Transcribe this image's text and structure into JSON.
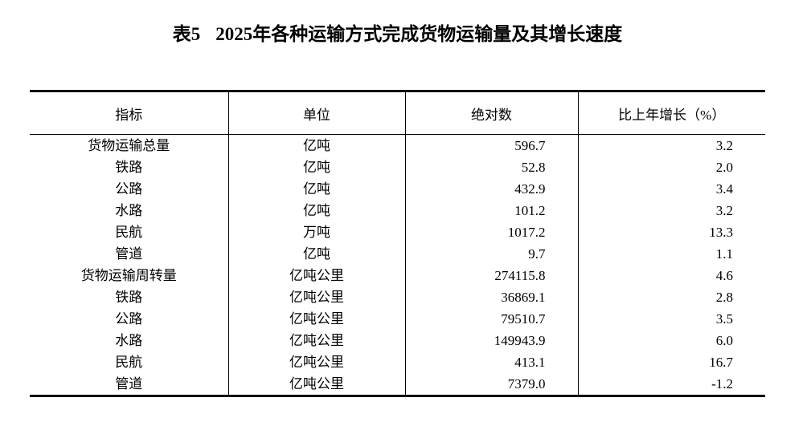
{
  "title": {
    "prefix": "表5",
    "text": "2025年各种运输方式完成货物运输量及其增长速度"
  },
  "table": {
    "columns": [
      "指标",
      "单位",
      "绝对数",
      "比上年增长（%）"
    ],
    "rows": [
      {
        "indicator": "货物运输总量",
        "unit": "亿吨",
        "value": "596.7",
        "growth": "3.2"
      },
      {
        "indicator": "铁路",
        "unit": "亿吨",
        "value": "52.8",
        "growth": "2.0"
      },
      {
        "indicator": "公路",
        "unit": "亿吨",
        "value": "432.9",
        "growth": "3.4"
      },
      {
        "indicator": "水路",
        "unit": "亿吨",
        "value": "101.2",
        "growth": "3.2"
      },
      {
        "indicator": "民航",
        "unit": "万吨",
        "value": "1017.2",
        "growth": "13.3"
      },
      {
        "indicator": "管道",
        "unit": "亿吨",
        "value": "9.7",
        "growth": "1.1"
      },
      {
        "indicator": "货物运输周转量",
        "unit": "亿吨公里",
        "value": "274115.8",
        "growth": "4.6"
      },
      {
        "indicator": "铁路",
        "unit": "亿吨公里",
        "value": "36869.1",
        "growth": "2.8"
      },
      {
        "indicator": "公路",
        "unit": "亿吨公里",
        "value": "79510.7",
        "growth": "3.5"
      },
      {
        "indicator": "水路",
        "unit": "亿吨公里",
        "value": "149943.9",
        "growth": "6.0"
      },
      {
        "indicator": "民航",
        "unit": "亿吨公里",
        "value": "413.1",
        "growth": "16.7"
      },
      {
        "indicator": "管道",
        "unit": "亿吨公里",
        "value": "7379.0",
        "growth": "-1.2"
      }
    ]
  }
}
